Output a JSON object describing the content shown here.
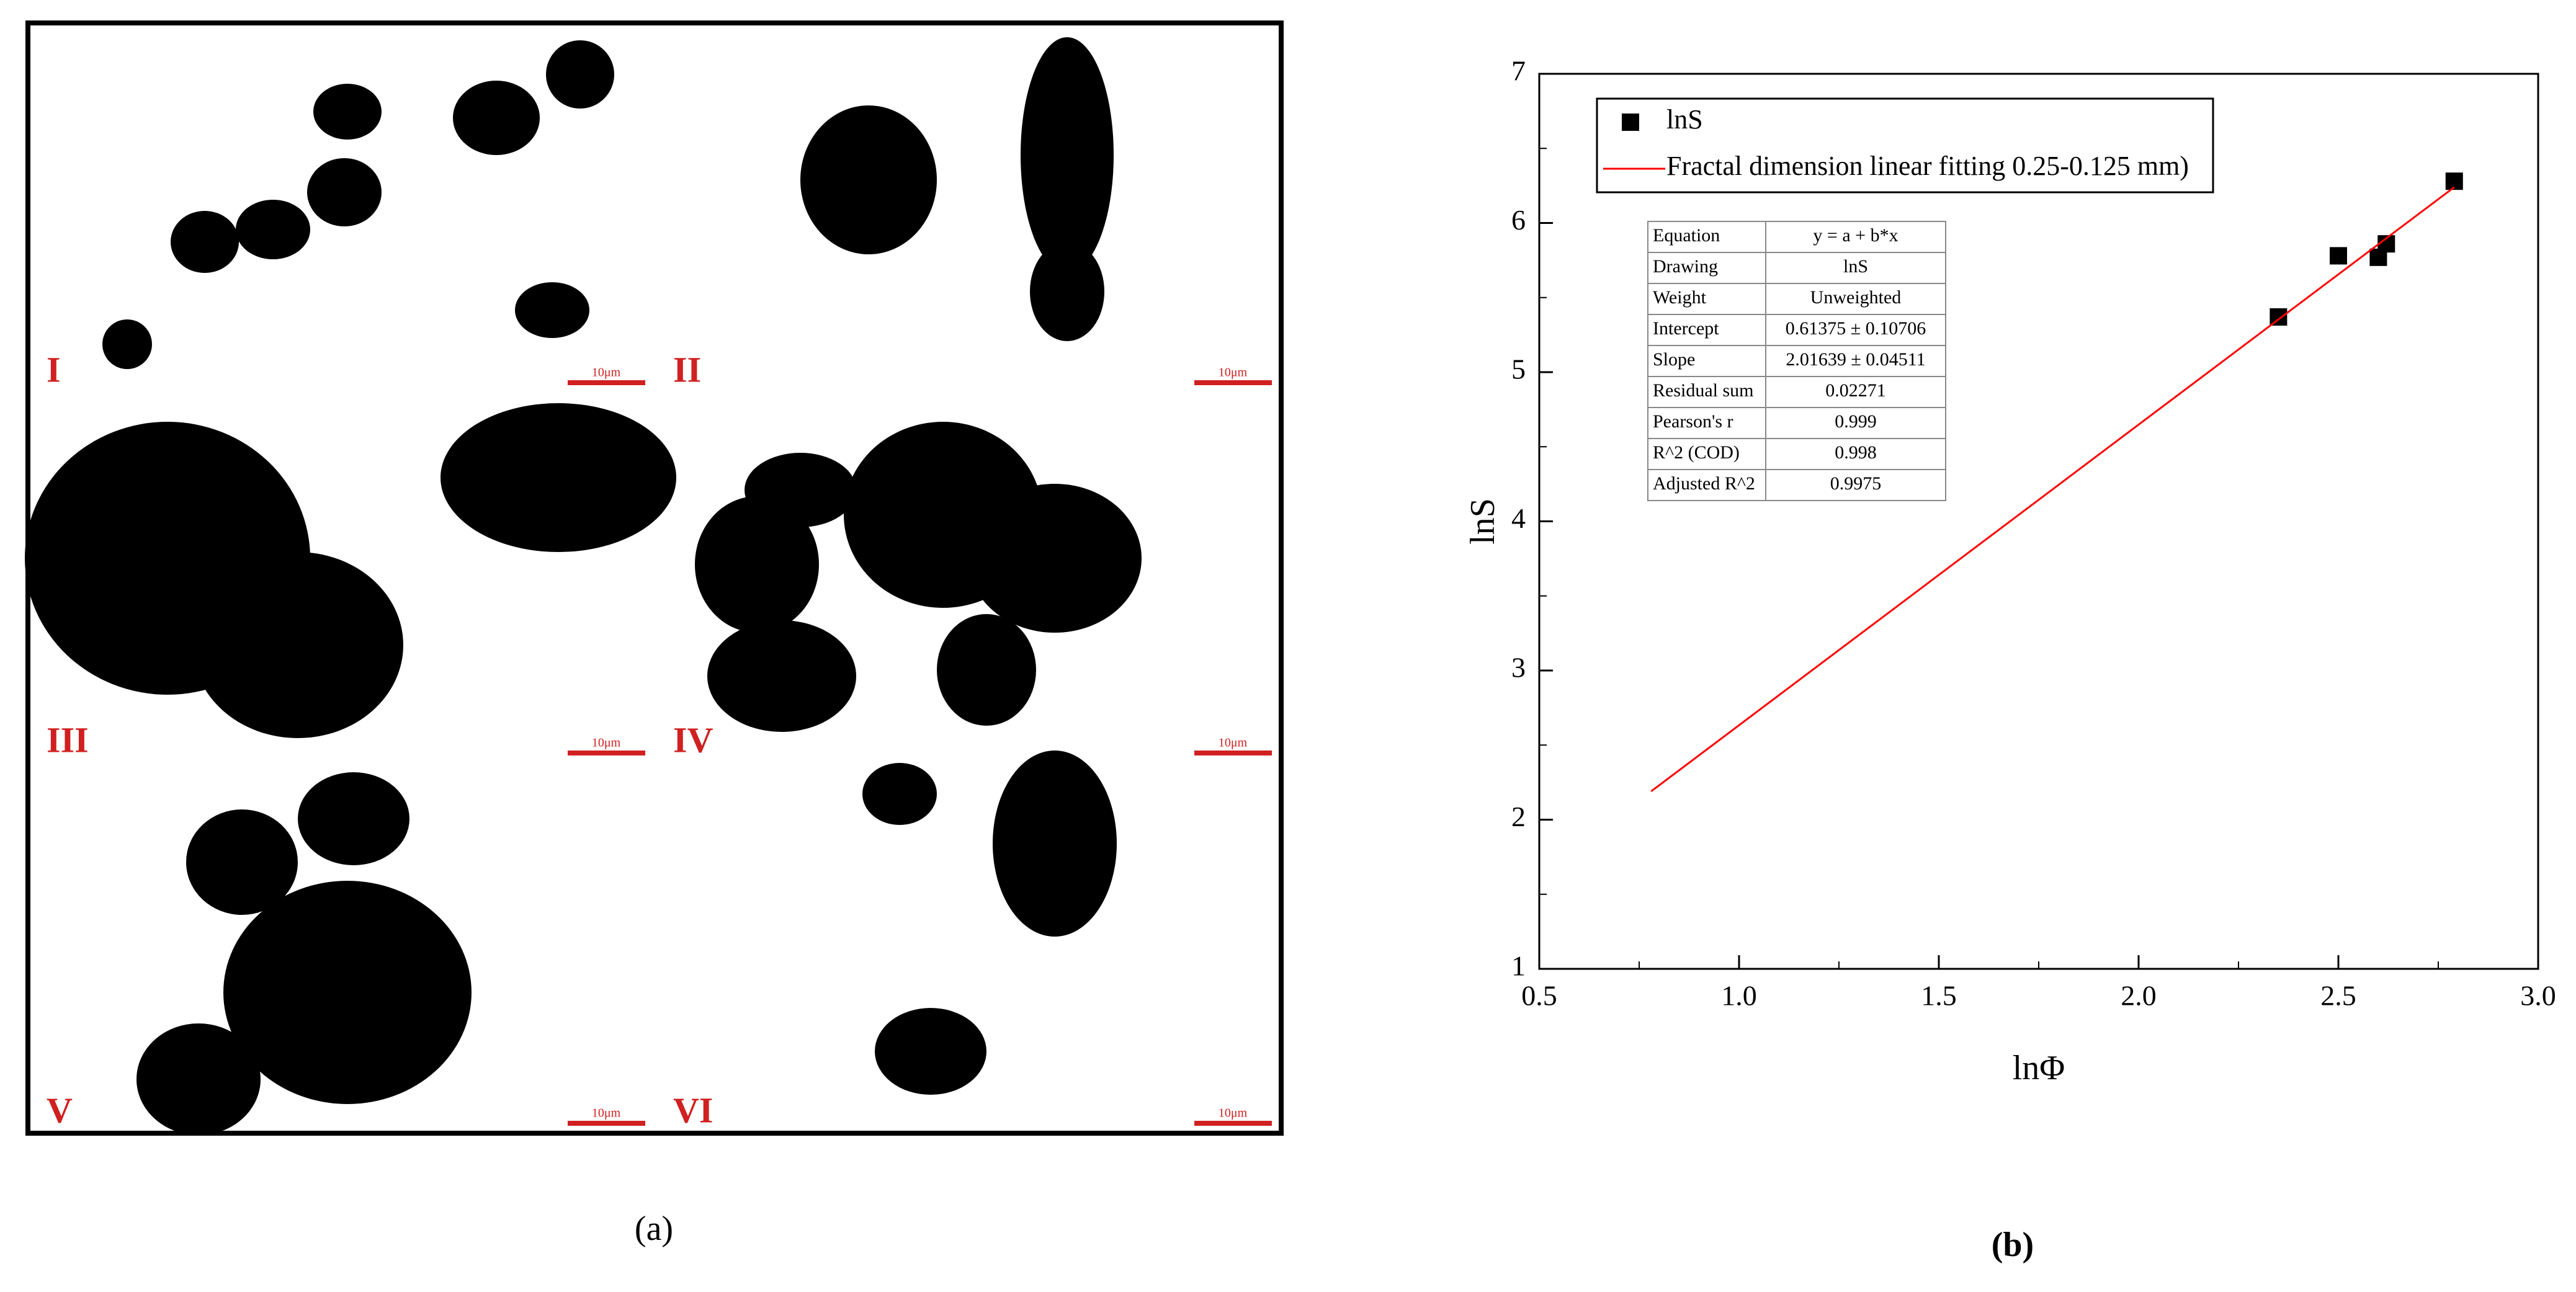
{
  "figure": {
    "panel_a_label": "(a)",
    "panel_b_label": "(b)",
    "micrograph": {
      "sub_labels": [
        "I",
        "II",
        "III",
        "IV",
        "V",
        "VI"
      ],
      "scale_bar": "10μm"
    }
  },
  "chart_data": {
    "type": "scatter",
    "x_label": "lnΦ",
    "y_label": "lnS",
    "xlim": [
      0.5,
      3.0
    ],
    "xticks": [
      {
        "value": 0.5,
        "label": "0.5"
      },
      {
        "value": 1,
        "label": "1.0"
      },
      {
        "value": 1.5,
        "label": "1.5"
      },
      {
        "value": 2,
        "label": "2.0"
      },
      {
        "value": 2.5,
        "label": "2.5"
      },
      {
        "value": 3,
        "label": "3.0"
      }
    ],
    "ylim": [
      1,
      7
    ],
    "yticks": [
      1,
      2,
      3,
      4,
      5,
      6,
      7
    ],
    "legend": "top-left",
    "series": [
      {
        "name": "lnS",
        "color": "#000000",
        "marker": "square",
        "x": [
          2.35,
          2.5,
          2.6,
          2.62,
          2.79
        ],
        "values": [
          5.37,
          5.78,
          5.77,
          5.86,
          6.28
        ]
      },
      {
        "name": "Fractal dimension linear fitting 0.25-0.125 mm)",
        "color": "#ff0000",
        "marker": "line",
        "x": [
          0.78,
          2.79
        ],
        "values": [
          2.19,
          6.24
        ]
      }
    ],
    "stats_table": [
      [
        "Equation",
        "y = a + b*x"
      ],
      [
        "Drawing",
        "lnS"
      ],
      [
        "Weight",
        "Unweighted"
      ],
      [
        "Intercept",
        "0.61375 ± 0.10706"
      ],
      [
        "Slope",
        "2.01639 ± 0.04511"
      ],
      [
        "Residual sum",
        "0.02271"
      ],
      [
        "Pearson's r",
        "0.999"
      ],
      [
        "R^2 (COD)",
        "0.998"
      ],
      [
        "Adjusted R^2",
        "0.9975"
      ]
    ]
  }
}
